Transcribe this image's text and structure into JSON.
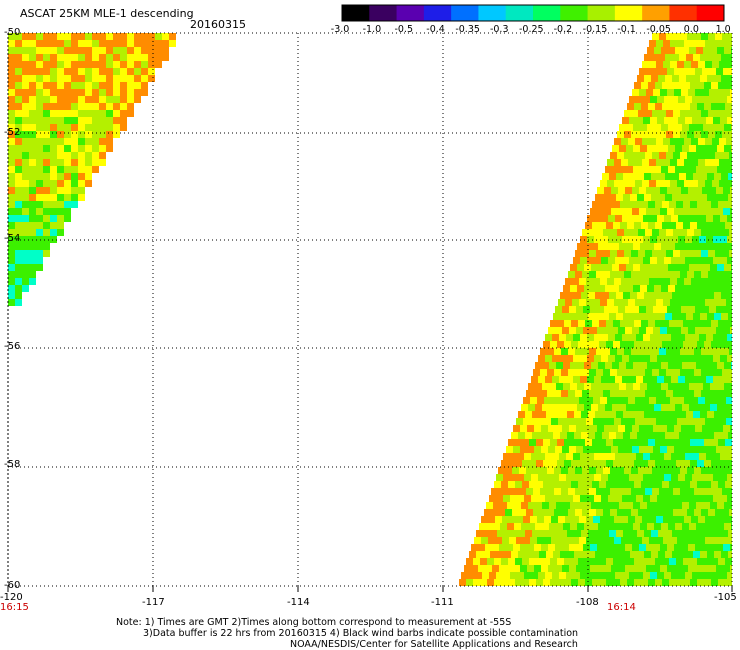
{
  "header": {
    "title": "ASCAT 25KM MLE-1 descending",
    "date": "20160315"
  },
  "colorbar": {
    "tick_labels": [
      "-3.0",
      "-1.0",
      "-0.5",
      "-0.4",
      "-0.35",
      "-0.3",
      "-0.25",
      "-0.2",
      "-0.15",
      "-0.1",
      "-0.05",
      "0.0",
      "1.0"
    ],
    "colors": [
      "#000000",
      "#3a0060",
      "#5a00b0",
      "#1e1ee8",
      "#0070ff",
      "#00c8ff",
      "#00e8c0",
      "#00ff60",
      "#40f000",
      "#a8f000",
      "#ffff00",
      "#ffa000",
      "#ff3000",
      "#ff0000"
    ]
  },
  "axes": {
    "lon_labels": [
      "-120",
      "-117",
      "-114",
      "-111",
      "-108",
      "-105"
    ],
    "lat_labels": [
      "-50",
      "-52",
      "-54",
      "-56",
      "-58",
      "-60"
    ]
  },
  "times": {
    "left": "16:15",
    "right": "16:14"
  },
  "notes": {
    "line1": "Note: 1) Times are GMT 2)Times along bottom correspond to measurement at -55S",
    "line2": "3)Data buffer is 22 hrs from 20160315 4) Black wind barbs indicate possible contamination",
    "line3": "NOAA/NESDIS/Center for Satellite Applications and Research"
  },
  "palette": {
    "orange": "#ff8c00",
    "yellow": "#ffff00",
    "lime": "#b4f000",
    "green": "#3cf000",
    "cyan": "#00ffc8",
    "grid": "#000000",
    "time_color": "#cc0000"
  }
}
